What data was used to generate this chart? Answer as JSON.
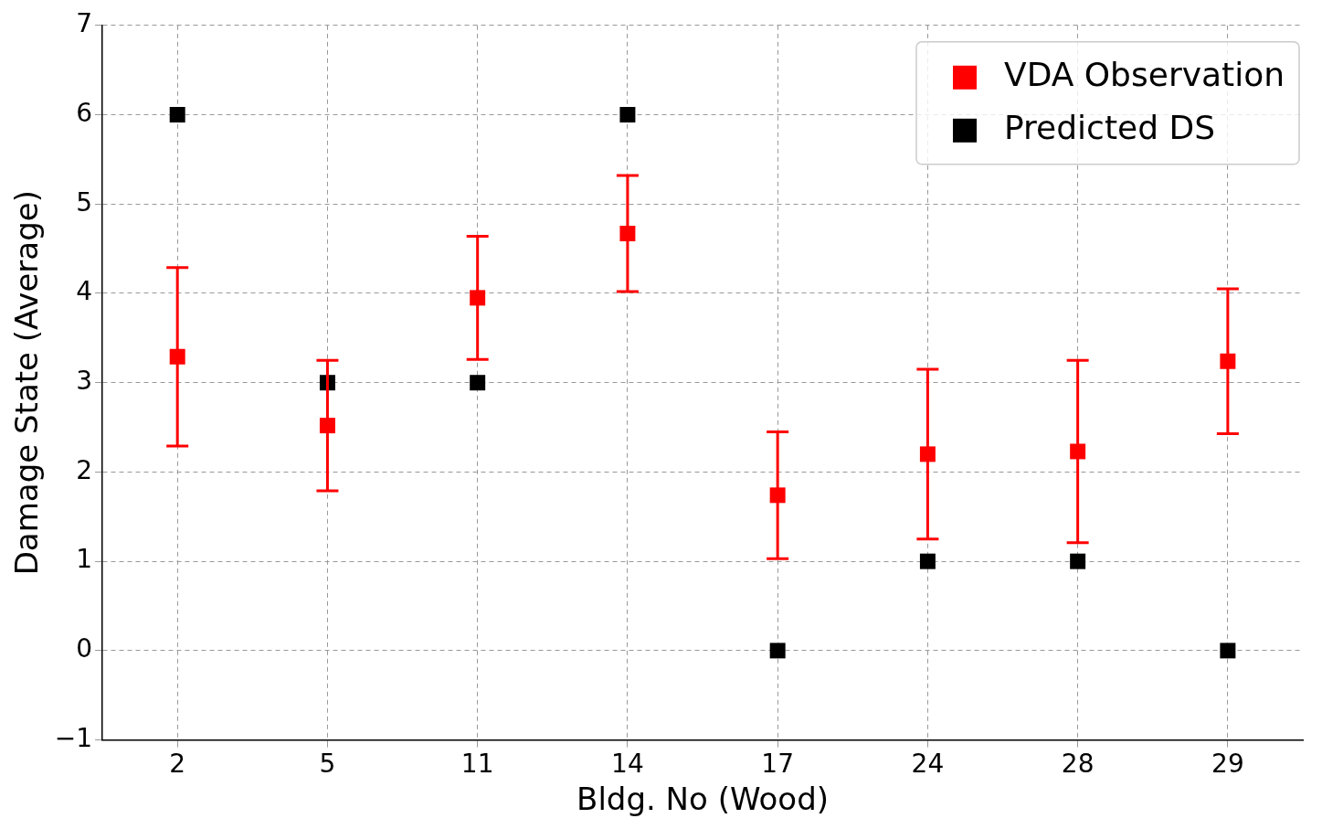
{
  "chart_data": {
    "type": "scatter",
    "xlabel": "Bldg. No (Wood)",
    "ylabel": "Damage State (Average)",
    "categories": [
      "2",
      "5",
      "11",
      "14",
      "17",
      "24",
      "28",
      "29"
    ],
    "series": [
      {
        "name": "VDA Observation",
        "color": "#ff0000",
        "values": [
          3.29,
          2.52,
          3.95,
          4.67,
          1.74,
          2.2,
          2.23,
          3.24
        ],
        "errors": [
          1.0,
          0.73,
          0.69,
          0.65,
          0.71,
          0.95,
          1.02,
          0.81
        ]
      },
      {
        "name": "Predicted DS",
        "color": "#000000",
        "values": [
          6,
          3,
          3,
          6,
          0,
          1,
          1,
          0
        ]
      }
    ],
    "ylim": [
      -1,
      7
    ],
    "yticks": [
      {
        "value": -1,
        "label": "−1"
      },
      0,
      1,
      2,
      3,
      4,
      5,
      6,
      7
    ],
    "grid": true,
    "legend": "top right",
    "marker": "square"
  }
}
